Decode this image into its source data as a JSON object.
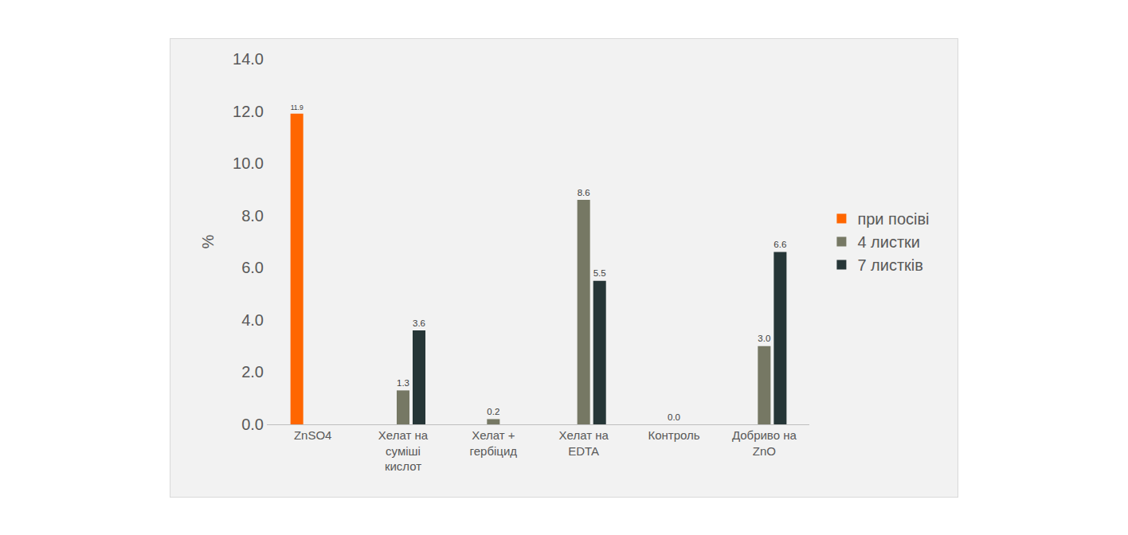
{
  "chart_data": {
    "type": "bar",
    "y_label": "%",
    "categories": [
      "ZnSO4",
      "Хелат на суміші кислот",
      "Хелат + гербіцид",
      "Хелат на EDTA",
      "Контроль",
      "Добриво на ZnO"
    ],
    "series": [
      {
        "name": "при посіві",
        "color": "#FF6600",
        "values": [
          11.9,
          null,
          null,
          null,
          null,
          null
        ],
        "value_labels": [
          "11.9",
          null,
          null,
          null,
          null,
          null
        ]
      },
      {
        "name": "4 листки",
        "color": "#767864",
        "values": [
          null,
          1.3,
          0.2,
          8.6,
          0,
          3
        ],
        "value_labels": [
          null,
          "1.3",
          "0.2",
          "8.6",
          "0.0",
          "3.0"
        ]
      },
      {
        "name": "7 листків",
        "color": "#263637",
        "values": [
          null,
          3.6,
          null,
          5.5,
          null,
          6.6
        ],
        "value_labels": [
          null,
          "3.6",
          null,
          "5.5",
          null,
          "6.6"
        ]
      }
    ],
    "ylim": [
      0,
      14
    ],
    "yticks": [
      {
        "value": 0,
        "label": "0.0"
      },
      {
        "value": 2,
        "label": "2.0"
      },
      {
        "value": 4,
        "label": "4.0"
      },
      {
        "value": 6,
        "label": "6.0"
      },
      {
        "value": 8,
        "label": "8.0"
      },
      {
        "value": 10,
        "label": "10.0"
      },
      {
        "value": 12,
        "label": "12.0"
      },
      {
        "value": 14,
        "label": "14.0"
      }
    ],
    "grid": false,
    "legend": "right",
    "data_labels": true
  }
}
